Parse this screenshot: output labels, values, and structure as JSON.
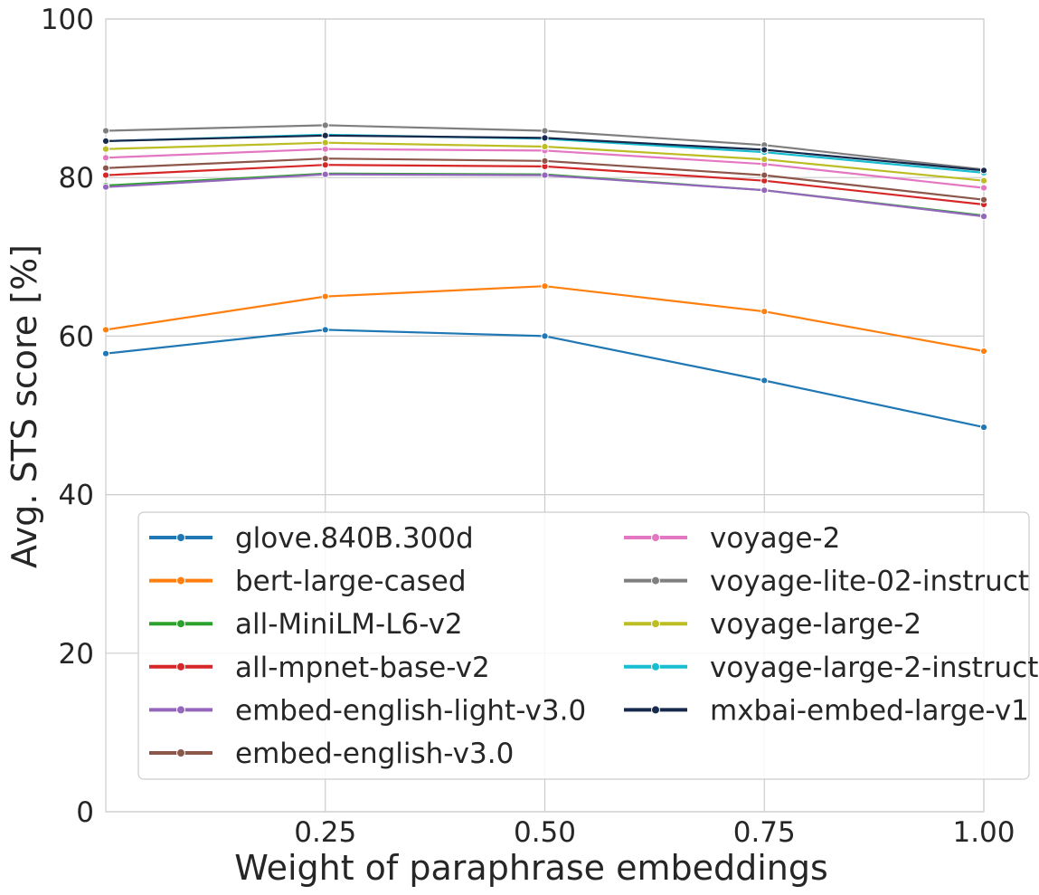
{
  "chart_data": {
    "type": "line",
    "title": "",
    "xlabel": "Weight of paraphrase embeddings",
    "ylabel": "Avg. STS score [%]",
    "xlim": [
      0,
      1
    ],
    "ylim": [
      0,
      100
    ],
    "x": [
      0,
      0.25,
      0.5,
      0.75,
      1.0
    ],
    "xticks": [
      0.25,
      0.5,
      0.75,
      1.0
    ],
    "xtick_labels": [
      "0.25",
      "0.50",
      "0.75",
      "1.00"
    ],
    "yticks": [
      0,
      20,
      40,
      60,
      80,
      100
    ],
    "ytick_labels": [
      "0",
      "20",
      "40",
      "60",
      "80",
      "100"
    ],
    "grid": true,
    "legend_placement": "bottom-center",
    "legend_columns": 2,
    "series": [
      {
        "name": "glove.840B.300d",
        "color": "#1f77b4",
        "values": [
          57.8,
          60.8,
          60.0,
          54.4,
          48.5
        ]
      },
      {
        "name": "bert-large-cased",
        "color": "#ff7f0e",
        "values": [
          60.8,
          65.0,
          66.3,
          63.1,
          58.1
        ]
      },
      {
        "name": "all-MiniLM-L6-v2",
        "color": "#2ca02c",
        "values": [
          79.0,
          80.5,
          80.4,
          78.4,
          75.2
        ]
      },
      {
        "name": "all-mpnet-base-v2",
        "color": "#d62728",
        "values": [
          80.3,
          81.6,
          81.4,
          79.6,
          76.6
        ]
      },
      {
        "name": "embed-english-light-v3.0",
        "color": "#9467bd",
        "values": [
          78.8,
          80.4,
          80.3,
          78.4,
          75.1
        ]
      },
      {
        "name": "embed-english-v3.0",
        "color": "#8c564b",
        "values": [
          81.2,
          82.4,
          82.1,
          80.3,
          77.2
        ]
      },
      {
        "name": "voyage-2",
        "color": "#e377c2",
        "values": [
          82.5,
          83.6,
          83.4,
          81.7,
          78.7
        ]
      },
      {
        "name": "voyage-lite-02-instruct",
        "color": "#7f7f7f",
        "values": [
          85.9,
          86.6,
          85.9,
          84.1,
          81.0
        ]
      },
      {
        "name": "voyage-large-2",
        "color": "#bcbd22",
        "values": [
          83.6,
          84.4,
          83.9,
          82.3,
          79.6
        ]
      },
      {
        "name": "voyage-large-2-instruct",
        "color": "#17becf",
        "values": [
          84.6,
          85.4,
          84.9,
          83.2,
          80.6
        ]
      },
      {
        "name": "mxbai-embed-large-v1",
        "color": "#172a4d",
        "values": [
          84.6,
          85.3,
          85.0,
          83.5,
          80.9
        ]
      }
    ]
  }
}
